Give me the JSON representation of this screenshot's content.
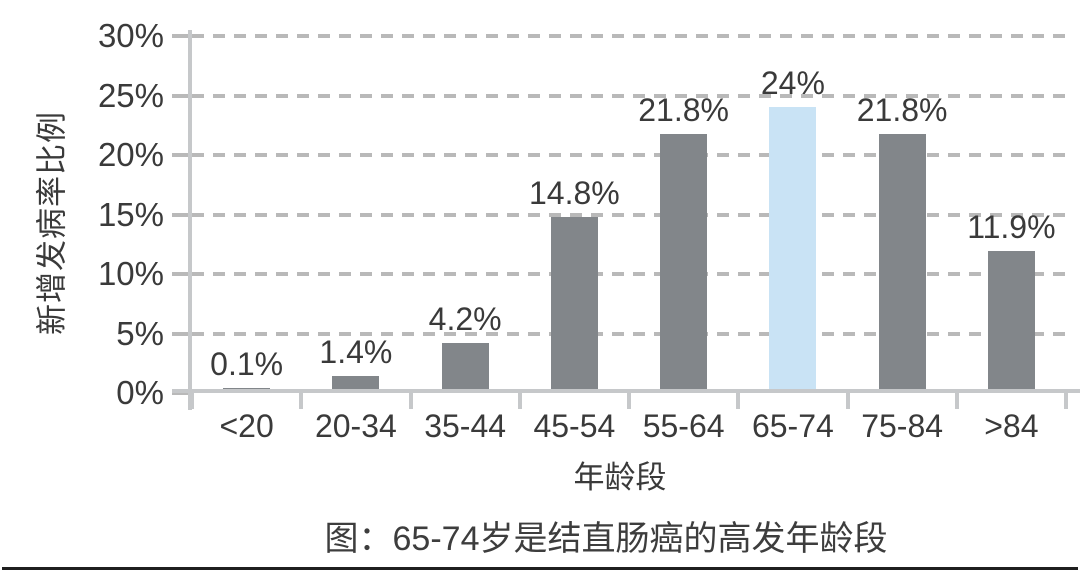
{
  "chart_data": {
    "type": "bar",
    "title": "图：65-74岁是结直肠癌的高发年龄段",
    "xlabel": "年龄段",
    "ylabel": "新增发病率比例",
    "categories": [
      "<20",
      "20-34",
      "35-44",
      "45-54",
      "55-64",
      "65-74",
      "75-84",
      ">84"
    ],
    "values": [
      0.1,
      1.4,
      4.2,
      14.8,
      21.8,
      24,
      21.8,
      11.9
    ],
    "value_labels": [
      "0.1%",
      "1.4%",
      "4.2%",
      "14.8%",
      "21.8%",
      "24%",
      "21.8%",
      "11.9%"
    ],
    "highlight_index": 5,
    "highlight_category": "65-74",
    "y_tick_labels": [
      "0%",
      "5%",
      "10%",
      "15%",
      "20%",
      "25%",
      "30%"
    ],
    "y_tick_values": [
      0,
      5,
      10,
      15,
      20,
      25,
      30
    ],
    "ylim": [
      0,
      30
    ],
    "grid": "horizontal-dashed",
    "legend": "none",
    "colors": {
      "bar": "#82868a",
      "highlight_bar": "#c9e3f5",
      "gridline": "#b9b9b9",
      "axis_line": "#c6c8ca",
      "text": "#3a3a3a"
    }
  }
}
